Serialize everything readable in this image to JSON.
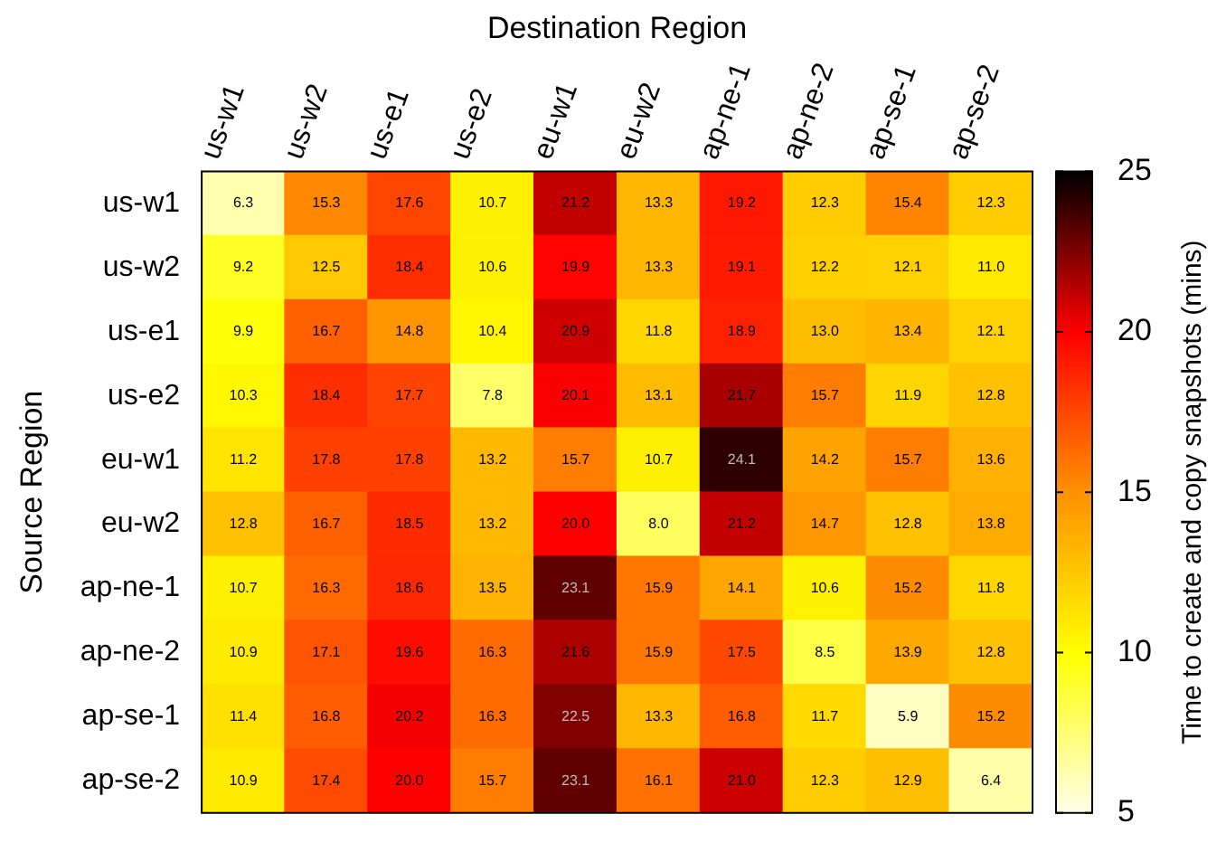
{
  "chart_data": {
    "type": "heatmap",
    "xlabel": "Destination Region",
    "ylabel": "Source Region",
    "clabel": "Time to create and copy snapshots (mins)",
    "categories": [
      "us-w1",
      "us-w2",
      "us-e1",
      "us-e2",
      "eu-w1",
      "eu-w2",
      "ap-ne-1",
      "ap-ne-2",
      "ap-se-1",
      "ap-se-2"
    ],
    "y_categories": [
      "us-w1",
      "us-w2",
      "us-e1",
      "us-e2",
      "eu-w1",
      "eu-w2",
      "ap-ne-1",
      "ap-ne-2",
      "ap-se-1",
      "ap-se-2"
    ],
    "cells": [
      [
        6.3,
        15.3,
        17.6,
        10.7,
        21.2,
        13.3,
        19.2,
        12.3,
        15.4,
        12.3
      ],
      [
        9.2,
        12.5,
        18.4,
        10.6,
        19.9,
        13.3,
        19.1,
        12.2,
        12.1,
        11.0
      ],
      [
        9.9,
        16.7,
        14.8,
        10.4,
        20.9,
        11.8,
        18.9,
        13.0,
        13.4,
        12.1
      ],
      [
        10.3,
        18.4,
        17.7,
        7.8,
        20.1,
        13.1,
        21.7,
        15.7,
        11.9,
        12.8
      ],
      [
        11.2,
        17.8,
        17.8,
        13.2,
        15.7,
        10.7,
        24.1,
        14.2,
        15.7,
        13.6
      ],
      [
        12.8,
        16.7,
        18.5,
        13.2,
        20.0,
        8.0,
        21.2,
        14.7,
        12.8,
        13.8
      ],
      [
        10.7,
        16.3,
        18.6,
        13.5,
        23.1,
        15.9,
        14.1,
        10.6,
        15.2,
        11.8
      ],
      [
        10.9,
        17.1,
        19.6,
        16.3,
        21.6,
        15.9,
        17.5,
        8.5,
        13.9,
        12.8
      ],
      [
        11.4,
        16.8,
        20.2,
        16.3,
        22.5,
        13.3,
        16.8,
        11.7,
        5.9,
        15.2
      ],
      [
        10.9,
        17.4,
        20.0,
        15.7,
        23.1,
        16.1,
        21.0,
        12.3,
        12.9,
        6.4
      ]
    ],
    "cell_labels": [
      [
        "6.3",
        "15.3",
        "17.6",
        "10.7",
        "21.2",
        "13.3",
        "19.2",
        "12.3",
        "15.4",
        "12.3"
      ],
      [
        "9.2",
        "12.5",
        "18.4",
        "10.6",
        "19.9",
        "13.3",
        "19.1",
        "12.2",
        "12.1",
        "11.0"
      ],
      [
        "9.9",
        "16.7",
        "14.8",
        "10.4",
        "20.9",
        "11.8",
        "18.9",
        "13.0",
        "13.4",
        "12.1"
      ],
      [
        "10.3",
        "18.4",
        "17.7",
        "7.8",
        "20.1",
        "13.1",
        "21.7",
        "15.7",
        "11.9",
        "12.8"
      ],
      [
        "11.2",
        "17.8",
        "17.8",
        "13.2",
        "15.7",
        "10.7",
        "24.1",
        "14.2",
        "15.7",
        "13.6"
      ],
      [
        "12.8",
        "16.7",
        "18.5",
        "13.2",
        "20.0",
        "8.0",
        "21.2",
        "14.7",
        "12.8",
        "13.8"
      ],
      [
        "10.7",
        "16.3",
        "18.6",
        "13.5",
        "23.1",
        "15.9",
        "14.1",
        "10.6",
        "15.2",
        "11.8"
      ],
      [
        "10.9",
        "17.1",
        "19.6",
        "16.3",
        "21.6",
        "15.9",
        "17.5",
        "8.5",
        "13.9",
        "12.8"
      ],
      [
        "11.4",
        "16.8",
        "20.2",
        "16.3",
        "22.5",
        "13.3",
        "16.8",
        "11.7",
        "5.9",
        "15.2"
      ],
      [
        "10.9",
        "17.4",
        "20.0",
        "15.7",
        "23.1",
        "16.1",
        "21.0",
        "12.3",
        "12.9",
        "6.4"
      ]
    ],
    "clim": [
      5,
      25
    ],
    "cticks": [
      5,
      10,
      15,
      20,
      25
    ],
    "data_labels": true
  }
}
